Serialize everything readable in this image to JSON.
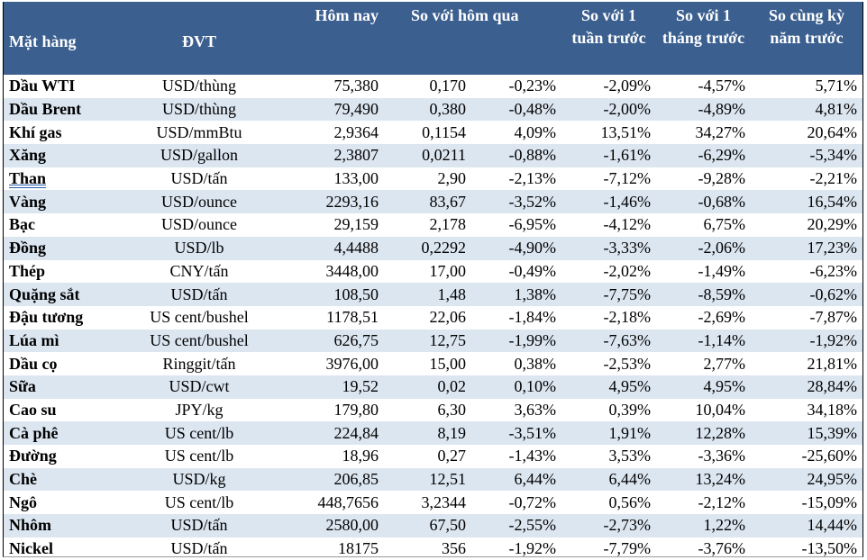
{
  "headers": {
    "item": "Mặt hàng",
    "unit": "ĐVT",
    "today": "Hôm nay",
    "vs_yesterday": "So với hôm qua",
    "vs_week": "So với 1 tuần trước",
    "vs_month": "So với 1 tháng trước",
    "vs_year": "So cùng kỳ năm trước"
  },
  "rows": [
    [
      "Dầu WTI",
      "USD/thùng",
      "75,380",
      "0,170",
      "-0,23%",
      "-2,09%",
      "-4,57%",
      "5,71%"
    ],
    [
      "Dầu Brent",
      "USD/thùng",
      "79,490",
      "0,380",
      "-0,48%",
      "-2,00%",
      "-4,89%",
      "4,81%"
    ],
    [
      "Khí gas",
      "USD/mmBtu",
      "2,9364",
      "0,1154",
      "4,09%",
      "13,51%",
      "34,27%",
      "20,64%"
    ],
    [
      "Xăng",
      "USD/gallon",
      "2,3807",
      "0,0211",
      "-0,88%",
      "-1,61%",
      "-6,29%",
      "-5,34%"
    ],
    [
      "Than",
      "USD/tấn",
      "133,00",
      "2,90",
      "-2,13%",
      "-7,12%",
      "-9,28%",
      "-2,21%"
    ],
    [
      "Vàng",
      "USD/ounce",
      "2293,16",
      "83,67",
      "-3,52%",
      "-1,46%",
      "-0,68%",
      "16,54%"
    ],
    [
      "Bạc",
      "USD/ounce",
      "29,159",
      "2,178",
      "-6,95%",
      "-4,12%",
      "6,75%",
      "20,29%"
    ],
    [
      "Đồng",
      "USD/lb",
      "4,4488",
      "0,2292",
      "-4,90%",
      "-3,33%",
      "-2,06%",
      "17,23%"
    ],
    [
      "Thép",
      "CNY/tấn",
      "3448,00",
      "17,00",
      "-0,49%",
      "-2,02%",
      "-1,49%",
      "-6,23%"
    ],
    [
      "Quặng sắt",
      "USD/tấn",
      "108,50",
      "1,48",
      "1,38%",
      "-7,75%",
      "-8,59%",
      "-0,62%"
    ],
    [
      "Đậu tương",
      "US cent/bushel",
      "1178,51",
      "22,06",
      "-1,84%",
      "-2,18%",
      "-2,69%",
      "-7,87%"
    ],
    [
      "Lúa mì",
      "US cent/bushel",
      "626,75",
      "12,75",
      "-1,99%",
      "-7,63%",
      "-1,14%",
      "-1,92%"
    ],
    [
      "Dầu cọ",
      "Ringgit/tấn",
      "3976,00",
      "15,00",
      "0,38%",
      "-2,53%",
      "2,77%",
      "21,81%"
    ],
    [
      "Sữa",
      "USD/cwt",
      "19,52",
      "0,02",
      "0,10%",
      "4,95%",
      "4,95%",
      "28,84%"
    ],
    [
      "Cao su",
      "JPY/kg",
      "179,80",
      "6,30",
      "3,63%",
      "0,39%",
      "10,04%",
      "34,18%"
    ],
    [
      "Cà phê",
      "US cent/lb",
      "224,84",
      "8,19",
      "-3,51%",
      "1,91%",
      "12,28%",
      "15,39%"
    ],
    [
      "Đường",
      "US cent/lb",
      "18,96",
      "0,27",
      "-1,43%",
      "3,53%",
      "-3,36%",
      "-25,60%"
    ],
    [
      "Chè",
      "USD/kg",
      "206,85",
      "12,51",
      "6,44%",
      "6,44%",
      "13,24%",
      "24,95%"
    ],
    [
      "Ngô",
      "US cent/lb",
      "448,7656",
      "3,2344",
      "-0,72%",
      "0,56%",
      "-2,12%",
      "-15,09%"
    ],
    [
      "Nhôm",
      "USD/tấn",
      "2580,00",
      "67,50",
      "-2,55%",
      "-2,73%",
      "1,22%",
      "14,44%"
    ],
    [
      "Nickel",
      "USD/tấn",
      "18175",
      "356",
      "-1,92%",
      "-7,79%",
      "-3,76%",
      "-13,50%"
    ]
  ]
}
